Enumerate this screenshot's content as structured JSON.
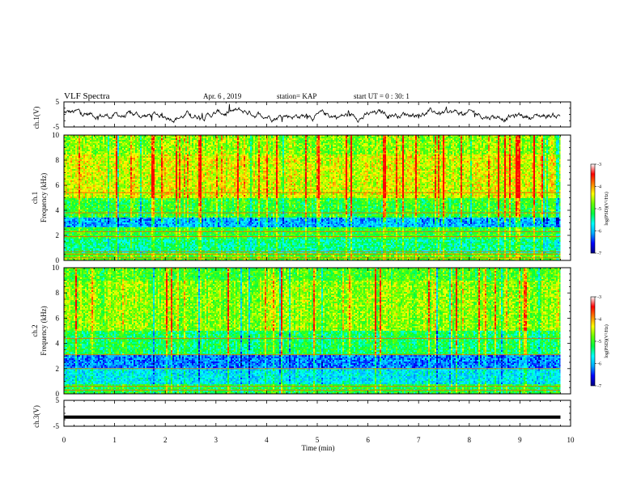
{
  "header": {
    "title": "VLF Spectra",
    "date": "Apr. 6 , 2019",
    "station": "station= KAP",
    "start_time": "start UT = 0 : 30: 1"
  },
  "colors": {
    "colormap": [
      "#000080",
      "#0000ff",
      "#00aaff",
      "#00ffff",
      "#00ff40",
      "#66ff00",
      "#ffff00",
      "#ff8000",
      "#ff0000",
      "#ffffff"
    ],
    "trace": "#000000"
  },
  "chart_data": [
    {
      "type": "line",
      "panel": "ch1-waveform",
      "ylabel": "ch.1(V)",
      "ylim": [
        -5,
        5
      ],
      "yticks": [
        "5",
        "-5"
      ],
      "x_range": [
        0,
        10
      ],
      "data_end_x": 9.8,
      "description_values": "noisy trace oscillating around 0 V between about -2 and +2 V",
      "y_amplitude": 2
    },
    {
      "type": "heatmap",
      "panel": "ch1-spectrogram",
      "ylabel": "ch.1 Frequency (kHz)",
      "ylabel_lines": [
        "ch.1",
        "Frequency (kHz)"
      ],
      "ylim": [
        0,
        10
      ],
      "yticks": [
        "0",
        "2",
        "4",
        "6",
        "8",
        "10"
      ],
      "x_range": [
        0,
        10
      ],
      "data_end_x": 9.8,
      "color_scale": {
        "label": "log(PSD)(V²/Hz)",
        "range": [
          -7,
          -3
        ],
        "ticks": [
          "-3",
          "-4",
          "-5",
          "-6",
          "-7"
        ]
      },
      "band_profile": [
        {
          "f_low": 0,
          "f_high": 0.6,
          "level": -4.6
        },
        {
          "f_low": 0.6,
          "f_high": 1.8,
          "level": -5.2
        },
        {
          "f_low": 1.8,
          "f_high": 2.6,
          "level": -4.8
        },
        {
          "f_low": 2.6,
          "f_high": 3.4,
          "level": -5.9
        },
        {
          "f_low": 3.4,
          "f_high": 5.0,
          "level": -4.8
        },
        {
          "f_low": 5.0,
          "f_high": 8.5,
          "level": -4.1
        },
        {
          "f_low": 8.5,
          "f_high": 10,
          "level": -4.4
        }
      ],
      "lines_khz": [
        0.2,
        0.5,
        0.7,
        1.9,
        2.3,
        3.8,
        5.4
      ]
    },
    {
      "type": "heatmap",
      "panel": "ch2-spectrogram",
      "ylabel": "ch.2 Frequency (kHz)",
      "ylabel_lines": [
        "ch.2",
        "Frequency (kHz)"
      ],
      "ylim": [
        0,
        10
      ],
      "yticks": [
        "0",
        "2",
        "4",
        "6",
        "8",
        "10"
      ],
      "x_range": [
        0,
        10
      ],
      "data_end_x": 9.8,
      "color_scale": {
        "label": "log(PSD)(V²/Hz)",
        "range": [
          -7,
          -3
        ],
        "ticks": [
          "-3",
          "-4",
          "-5",
          "-6",
          "-7"
        ]
      },
      "band_profile": [
        {
          "f_low": 0,
          "f_high": 0.8,
          "level": -4.9
        },
        {
          "f_low": 0.8,
          "f_high": 2.0,
          "level": -5.6
        },
        {
          "f_low": 2.0,
          "f_high": 3.1,
          "level": -6.1
        },
        {
          "f_low": 3.1,
          "f_high": 5.0,
          "level": -5.0
        },
        {
          "f_low": 5.0,
          "f_high": 9.0,
          "level": -4.4
        },
        {
          "f_low": 9.0,
          "f_high": 10,
          "level": -4.7
        }
      ],
      "lines_khz": [
        0.3,
        0.6,
        2.0,
        3.1,
        4.4
      ]
    },
    {
      "type": "line",
      "panel": "ch3-waveform",
      "ylabel": "ch.3(V)",
      "ylim": [
        -5,
        5
      ],
      "yticks": [
        "5",
        "-5"
      ],
      "x_range": [
        0,
        10
      ],
      "data_end_x": 9.8,
      "constant_value": -1.5
    }
  ],
  "x_axis": {
    "label": "Time (min)",
    "ticks": [
      "0",
      "1",
      "2",
      "3",
      "4",
      "5",
      "6",
      "7",
      "8",
      "9",
      "10"
    ]
  }
}
